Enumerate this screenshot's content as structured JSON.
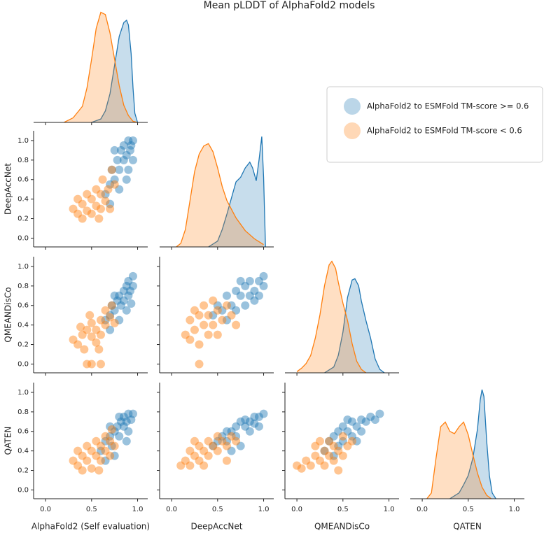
{
  "title": "Mean pLDDT of AlphaFold2 models",
  "legend": {
    "series": [
      {
        "name": "AlphaFold2 to ESMFold TM-score >= 0.6",
        "color": "#1f77b4"
      },
      {
        "name": "AlphaFold2 to ESMFold TM-score < 0.6",
        "color": "#ff7f0e"
      }
    ]
  },
  "axes": [
    {
      "label": "AlphaFold2 (Self evaluation)",
      "xlim": [
        -0.13,
        1.11
      ],
      "xticks": [
        {
          "value": 0,
          "label": "0.0"
        },
        {
          "value": 0.5,
          "label": "0.5"
        },
        {
          "value": 1,
          "label": "1.0"
        }
      ]
    },
    {
      "label": "DeepAccNet",
      "xlim": [
        -0.13,
        1.11
      ],
      "xticks": [
        {
          "value": 0,
          "label": "0.0"
        },
        {
          "value": 0.5,
          "label": "0.5"
        },
        {
          "value": 1,
          "label": "1.0"
        }
      ],
      "ylim": [
        -0.09,
        1.1
      ],
      "yticks": [
        {
          "value": 0,
          "label": "0.0"
        },
        {
          "value": 0.2,
          "label": "0.2"
        },
        {
          "value": 0.4,
          "label": "0.4"
        },
        {
          "value": 0.6,
          "label": "0.6"
        },
        {
          "value": 0.8,
          "label": "0.8"
        },
        {
          "value": 1,
          "label": "1.0"
        }
      ]
    },
    {
      "label": "QMEANDisCo",
      "xlim": [
        -0.13,
        1.11
      ],
      "xticks": [
        {
          "value": 0,
          "label": "0.0"
        },
        {
          "value": 0.5,
          "label": "0.5"
        },
        {
          "value": 1,
          "label": "1.0"
        }
      ],
      "ylim": [
        -0.09,
        1.1
      ],
      "yticks": [
        {
          "value": 0,
          "label": "0.0"
        },
        {
          "value": 0.2,
          "label": "0.2"
        },
        {
          "value": 0.4,
          "label": "0.4"
        },
        {
          "value": 0.6,
          "label": "0.6"
        },
        {
          "value": 0.8,
          "label": "0.8"
        },
        {
          "value": 1,
          "label": "1.0"
        }
      ]
    },
    {
      "label": "QATEN",
      "xlim": [
        -0.13,
        1.11
      ],
      "xticks": [
        {
          "value": 0,
          "label": "0.0"
        },
        {
          "value": 0.5,
          "label": "0.5"
        },
        {
          "value": 1,
          "label": "1.0"
        }
      ],
      "ylim": [
        -0.09,
        1.1
      ],
      "yticks": [
        {
          "value": 0,
          "label": "0.0"
        },
        {
          "value": 0.2,
          "label": "0.2"
        },
        {
          "value": 0.4,
          "label": "0.4"
        },
        {
          "value": 0.6,
          "label": "0.6"
        },
        {
          "value": 0.8,
          "label": "0.8"
        },
        {
          "value": 1,
          "label": "1.0"
        }
      ]
    }
  ],
  "chart_data": [
    {
      "type": "kde",
      "ylim": [
        0,
        1
      ],
      "series": [
        {
          "color": "#1f77b4",
          "x": [
            0.5,
            0.6,
            0.65,
            0.7,
            0.75,
            0.8,
            0.85,
            0.88,
            0.9,
            0.93,
            0.95,
            0.97,
            1.0
          ],
          "values": [
            0,
            0.03,
            0.1,
            0.25,
            0.5,
            0.75,
            0.87,
            0.89,
            0.85,
            0.6,
            0.3,
            0.08,
            0
          ]
        },
        {
          "color": "#ff7f0e",
          "x": [
            0.2,
            0.3,
            0.4,
            0.45,
            0.5,
            0.55,
            0.6,
            0.65,
            0.7,
            0.75,
            0.8,
            0.85,
            0.9,
            0.95,
            1.0
          ],
          "values": [
            0,
            0.04,
            0.14,
            0.3,
            0.55,
            0.82,
            0.96,
            0.94,
            0.78,
            0.55,
            0.32,
            0.15,
            0.06,
            0.01,
            0
          ]
        }
      ]
    },
    {
      "type": "scatter",
      "series": [
        {
          "color": "#1f77b4",
          "x": [
            0.65,
            0.7,
            0.72,
            0.75,
            0.78,
            0.8,
            0.82,
            0.85,
            0.85,
            0.88,
            0.9,
            0.9,
            0.92,
            0.95,
            0.95,
            0.8,
            0.7,
            0.88,
            0.93,
            0.75
          ],
          "values": [
            0.45,
            0.55,
            0.7,
            0.6,
            0.8,
            0.7,
            0.9,
            0.8,
            0.95,
            0.85,
            1.0,
            0.7,
            0.9,
            1.0,
            0.8,
            0.5,
            0.35,
            0.6,
            0.95,
            0.9
          ]
        },
        {
          "color": "#ff7f0e",
          "x": [
            0.3,
            0.35,
            0.4,
            0.45,
            0.5,
            0.5,
            0.55,
            0.55,
            0.6,
            0.6,
            0.62,
            0.65,
            0.68,
            0.7,
            0.72,
            0.45,
            0.4,
            0.58,
            0.75,
            0.35
          ],
          "values": [
            0.3,
            0.25,
            0.35,
            0.28,
            0.4,
            0.25,
            0.33,
            0.5,
            0.3,
            0.45,
            0.6,
            0.38,
            0.5,
            0.3,
            0.7,
            0.45,
            0.2,
            0.2,
            0.55,
            0.4
          ]
        }
      ]
    },
    {
      "type": "kde",
      "ylim": [
        0,
        1
      ],
      "series": [
        {
          "color": "#1f77b4",
          "x": [
            0.4,
            0.5,
            0.55,
            0.6,
            0.65,
            0.7,
            0.75,
            0.8,
            0.85,
            0.88,
            0.92,
            0.95,
            0.98,
            1.0,
            1.02
          ],
          "values": [
            0,
            0.05,
            0.15,
            0.28,
            0.42,
            0.56,
            0.6,
            0.68,
            0.73,
            0.68,
            0.57,
            0.75,
            0.95,
            0.6,
            0
          ]
        },
        {
          "color": "#ff7f0e",
          "x": [
            0.05,
            0.1,
            0.15,
            0.2,
            0.25,
            0.3,
            0.35,
            0.4,
            0.45,
            0.5,
            0.55,
            0.6,
            0.7,
            0.8,
            0.9,
            1.0
          ],
          "values": [
            0,
            0.03,
            0.15,
            0.4,
            0.65,
            0.8,
            0.87,
            0.89,
            0.82,
            0.68,
            0.52,
            0.4,
            0.25,
            0.14,
            0.07,
            0.02
          ]
        }
      ]
    },
    {
      "type": "scatter",
      "series": [
        {
          "color": "#1f77b4",
          "x": [
            0.65,
            0.7,
            0.72,
            0.75,
            0.78,
            0.8,
            0.82,
            0.85,
            0.85,
            0.88,
            0.9,
            0.9,
            0.92,
            0.95,
            0.95,
            0.8,
            0.7,
            0.88,
            0.75,
            0.93
          ],
          "values": [
            0.45,
            0.5,
            0.6,
            0.55,
            0.65,
            0.7,
            0.6,
            0.75,
            0.65,
            0.8,
            0.7,
            0.85,
            0.75,
            0.9,
            0.8,
            0.45,
            0.35,
            0.55,
            0.7,
            0.62
          ]
        },
        {
          "color": "#ff7f0e",
          "x": [
            0.3,
            0.35,
            0.4,
            0.42,
            0.45,
            0.5,
            0.5,
            0.55,
            0.55,
            0.6,
            0.6,
            0.65,
            0.65,
            0.7,
            0.72,
            0.48,
            0.38,
            0.58,
            0.75,
            0.45,
            0.5,
            0.6
          ],
          "values": [
            0.25,
            0.2,
            0.3,
            0.15,
            0.35,
            0.28,
            0.42,
            0.35,
            0.22,
            0.45,
            0.3,
            0.4,
            0.55,
            0.48,
            0.6,
            0.5,
            0.38,
            0.15,
            0.42,
            0,
            0,
            0
          ]
        }
      ]
    },
    {
      "type": "scatter",
      "series": [
        {
          "color": "#1f77b4",
          "x": [
            0.45,
            0.5,
            0.55,
            0.6,
            0.65,
            0.7,
            0.7,
            0.75,
            0.8,
            0.8,
            0.85,
            0.85,
            0.9,
            0.9,
            0.95,
            0.95,
            1.0,
            1.0,
            0.6,
            0.75
          ],
          "values": [
            0.5,
            0.6,
            0.55,
            0.7,
            0.6,
            0.75,
            0.55,
            0.7,
            0.8,
            0.6,
            0.7,
            0.85,
            0.75,
            0.65,
            0.85,
            0.7,
            0.8,
            0.9,
            0.45,
            0.85
          ]
        },
        {
          "color": "#ff7f0e",
          "x": [
            0.15,
            0.2,
            0.2,
            0.25,
            0.3,
            0.3,
            0.35,
            0.35,
            0.4,
            0.4,
            0.45,
            0.5,
            0.5,
            0.55,
            0.6,
            0.65,
            0.7,
            0.25,
            0.45,
            0.3
          ],
          "values": [
            0.3,
            0.45,
            0.25,
            0.35,
            0.5,
            0.2,
            0.4,
            0.6,
            0.3,
            0.5,
            0.4,
            0.55,
            0.3,
            0.45,
            0.6,
            0.5,
            0.4,
            0.55,
            0.65,
            0
          ]
        }
      ]
    },
    {
      "type": "kde",
      "ylim": [
        0,
        1
      ],
      "series": [
        {
          "color": "#1f77b4",
          "x": [
            0.3,
            0.4,
            0.45,
            0.5,
            0.55,
            0.6,
            0.63,
            0.67,
            0.7,
            0.75,
            0.8,
            0.85,
            0.9,
            0.95
          ],
          "values": [
            0,
            0.05,
            0.15,
            0.35,
            0.65,
            0.8,
            0.81,
            0.75,
            0.62,
            0.45,
            0.3,
            0.12,
            0.03,
            0
          ]
        },
        {
          "color": "#ff7f0e",
          "x": [
            0.0,
            0.05,
            0.1,
            0.15,
            0.2,
            0.25,
            0.3,
            0.35,
            0.38,
            0.42,
            0.45,
            0.5,
            0.55,
            0.6,
            0.65,
            0.7,
            0.75
          ],
          "values": [
            0.01,
            0.04,
            0.08,
            0.15,
            0.3,
            0.5,
            0.75,
            0.93,
            0.96,
            0.9,
            0.78,
            0.6,
            0.45,
            0.25,
            0.1,
            0.03,
            0
          ]
        }
      ]
    },
    {
      "type": "scatter",
      "series": [
        {
          "color": "#1f77b4",
          "x": [
            0.6,
            0.65,
            0.7,
            0.72,
            0.75,
            0.78,
            0.8,
            0.82,
            0.85,
            0.85,
            0.88,
            0.9,
            0.9,
            0.93,
            0.95,
            0.75,
            0.65,
            0.88,
            0.8,
            0.7
          ],
          "values": [
            0.4,
            0.5,
            0.55,
            0.45,
            0.6,
            0.65,
            0.55,
            0.7,
            0.65,
            0.75,
            0.7,
            0.78,
            0.6,
            0.72,
            0.78,
            0.35,
            0.3,
            0.5,
            0.75,
            0.65
          ]
        },
        {
          "color": "#ff7f0e",
          "x": [
            0.3,
            0.35,
            0.4,
            0.4,
            0.45,
            0.5,
            0.5,
            0.55,
            0.55,
            0.6,
            0.6,
            0.65,
            0.65,
            0.7,
            0.7,
            0.75,
            0.45,
            0.58,
            0.35,
            0.72
          ],
          "values": [
            0.3,
            0.25,
            0.35,
            0.2,
            0.3,
            0.4,
            0.22,
            0.35,
            0.5,
            0.3,
            0.45,
            0.4,
            0.55,
            0.35,
            0.5,
            0.45,
            0.45,
            0.2,
            0.4,
            0.62
          ]
        }
      ]
    },
    {
      "type": "scatter",
      "series": [
        {
          "color": "#1f77b4",
          "x": [
            0.45,
            0.5,
            0.55,
            0.6,
            0.6,
            0.65,
            0.7,
            0.7,
            0.75,
            0.8,
            0.8,
            0.85,
            0.9,
            0.9,
            0.95,
            1.0,
            0.95,
            0.75,
            0.85,
            0.65
          ],
          "values": [
            0.45,
            0.5,
            0.55,
            0.5,
            0.6,
            0.6,
            0.65,
            0.55,
            0.7,
            0.65,
            0.72,
            0.7,
            0.75,
            0.68,
            0.75,
            0.78,
            0.65,
            0.45,
            0.6,
            0.4
          ]
        },
        {
          "color": "#ff7f0e",
          "x": [
            0.1,
            0.15,
            0.2,
            0.2,
            0.25,
            0.3,
            0.3,
            0.35,
            0.4,
            0.4,
            0.45,
            0.5,
            0.5,
            0.55,
            0.6,
            0.65,
            0.7,
            0.25,
            0.35,
            0.6
          ],
          "values": [
            0.25,
            0.3,
            0.25,
            0.4,
            0.35,
            0.3,
            0.45,
            0.4,
            0.35,
            0.5,
            0.45,
            0.4,
            0.55,
            0.5,
            0.45,
            0.55,
            0.5,
            0.5,
            0.25,
            0.3
          ]
        }
      ]
    },
    {
      "type": "scatter",
      "series": [
        {
          "color": "#1f77b4",
          "x": [
            0.3,
            0.35,
            0.4,
            0.45,
            0.5,
            0.5,
            0.55,
            0.6,
            0.6,
            0.65,
            0.7,
            0.7,
            0.75,
            0.8,
            0.85,
            0.9,
            0.45,
            0.55,
            0.65,
            0.4
          ],
          "values": [
            0.4,
            0.5,
            0.55,
            0.6,
            0.65,
            0.5,
            0.6,
            0.7,
            0.55,
            0.65,
            0.72,
            0.6,
            0.7,
            0.75,
            0.72,
            0.78,
            0.45,
            0.72,
            0.5,
            0.35
          ]
        },
        {
          "color": "#ff7f0e",
          "x": [
            0.0,
            0.05,
            0.1,
            0.15,
            0.2,
            0.2,
            0.25,
            0.3,
            0.3,
            0.35,
            0.35,
            0.4,
            0.4,
            0.45,
            0.5,
            0.5,
            0.55,
            0.25,
            0.45,
            0.6
          ],
          "values": [
            0.25,
            0.22,
            0.3,
            0.25,
            0.35,
            0.45,
            0.3,
            0.4,
            0.25,
            0.5,
            0.35,
            0.45,
            0.3,
            0.4,
            0.55,
            0.35,
            0.45,
            0.5,
            0.2,
            0.5
          ]
        }
      ]
    },
    {
      "type": "kde",
      "ylim": [
        0,
        1
      ],
      "series": [
        {
          "color": "#1f77b4",
          "x": [
            0.3,
            0.4,
            0.45,
            0.5,
            0.55,
            0.6,
            0.63,
            0.65,
            0.67,
            0.7,
            0.73,
            0.76,
            0.8
          ],
          "values": [
            0,
            0.05,
            0.12,
            0.2,
            0.35,
            0.6,
            0.85,
            0.94,
            0.88,
            0.5,
            0.2,
            0.05,
            0
          ]
        },
        {
          "color": "#ff7f0e",
          "x": [
            0.05,
            0.1,
            0.15,
            0.2,
            0.25,
            0.3,
            0.35,
            0.4,
            0.45,
            0.5,
            0.55,
            0.6,
            0.65,
            0.7,
            0.75
          ],
          "values": [
            0,
            0.05,
            0.35,
            0.62,
            0.66,
            0.58,
            0.56,
            0.62,
            0.66,
            0.55,
            0.38,
            0.22,
            0.1,
            0.03,
            0
          ]
        }
      ]
    }
  ]
}
